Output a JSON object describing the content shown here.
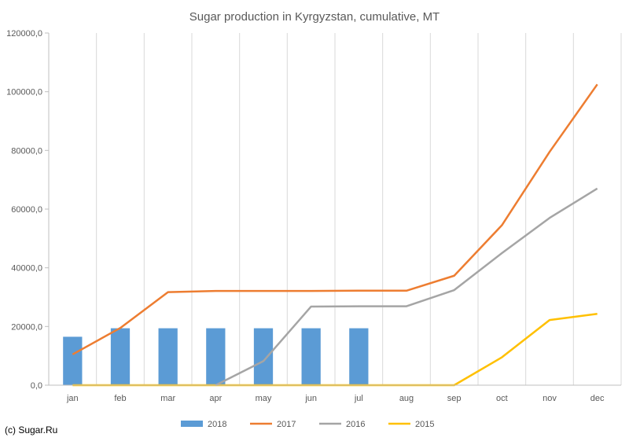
{
  "credit": "(c) Sugar.Ru",
  "colors": {
    "s2018": "#5B9BD5",
    "s2017": "#ED7D31",
    "s2016": "#A5A5A5",
    "s2015": "#FFC000",
    "grid": "#D9D9D9",
    "axis": "#BFBFBF"
  },
  "chart_data": {
    "type": "bar+line",
    "title": "Sugar production in Kyrgyzstan, cumulative, MT",
    "categories": [
      "jan",
      "feb",
      "mar",
      "apr",
      "may",
      "jun",
      "jul",
      "aug",
      "sep",
      "oct",
      "nov",
      "dec"
    ],
    "ylim": [
      0,
      120000
    ],
    "yticks": [
      0,
      20000,
      40000,
      60000,
      80000,
      100000,
      120000
    ],
    "ytick_labels": [
      "0,0",
      "20000,0",
      "40000,0",
      "60000,0",
      "80000,0",
      "100000,0",
      "120000,0"
    ],
    "grid": "vertical",
    "legend_position": "bottom",
    "series": [
      {
        "name": "2018",
        "type": "bar",
        "values": [
          16500,
          19400,
          19400,
          19400,
          19400,
          19400,
          19400,
          null,
          null,
          null,
          null,
          null
        ]
      },
      {
        "name": "2017",
        "type": "line",
        "values": [
          10500,
          19500,
          31700,
          32100,
          32100,
          32100,
          32200,
          32200,
          37300,
          54500,
          79500,
          102500
        ]
      },
      {
        "name": "2016",
        "type": "line",
        "values": [
          null,
          null,
          null,
          0,
          8200,
          26800,
          26900,
          26900,
          32400,
          45000,
          57000,
          67000
        ]
      },
      {
        "name": "2015",
        "type": "line",
        "values": [
          0,
          0,
          0,
          0,
          0,
          0,
          0,
          0,
          0,
          9500,
          22200,
          24300
        ]
      }
    ]
  }
}
